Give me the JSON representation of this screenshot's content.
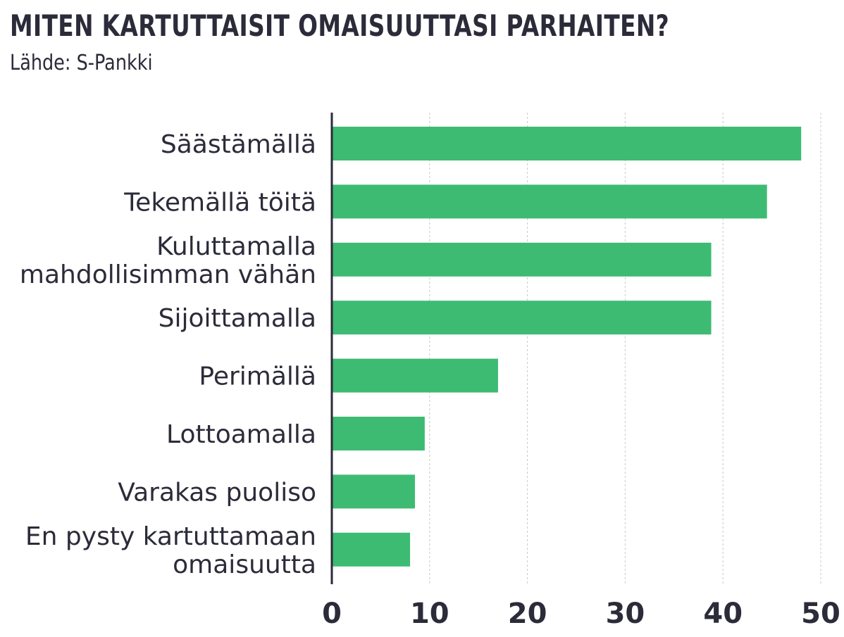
{
  "header": {
    "title": "MITEN KARTUTTAISIT OMAISUUTTASI PARHAITEN?",
    "subtitle": "Lähde: S-Pankki"
  },
  "colors": {
    "bar": "#3dbb73",
    "axis": "#2b2b3a",
    "grid": "#c8c8c8",
    "text": "#2b2b3a"
  },
  "chart_data": {
    "type": "bar",
    "orientation": "horizontal",
    "title": "MITEN KARTUTTAISIT OMAISUUTTASI PARHAITEN?",
    "subtitle": "Lähde: S-Pankki",
    "categories": [
      [
        "Säästämällä"
      ],
      [
        "Tekemällä töitä"
      ],
      [
        "Kuluttamalla",
        "mahdollisimman vähän"
      ],
      [
        "Sijoittamalla"
      ],
      [
        "Perimällä"
      ],
      [
        "Lottoamalla"
      ],
      [
        "Varakas puoliso"
      ],
      [
        "En pysty kartuttamaan",
        "omaisuutta"
      ]
    ],
    "values": [
      48,
      44.5,
      38.8,
      38.8,
      17,
      9.5,
      8.5,
      8
    ],
    "xlim": [
      0,
      50
    ],
    "xticks": [
      0,
      10,
      20,
      30,
      40,
      50
    ],
    "grid": "vertical dashed",
    "xlabel": "",
    "ylabel": ""
  }
}
